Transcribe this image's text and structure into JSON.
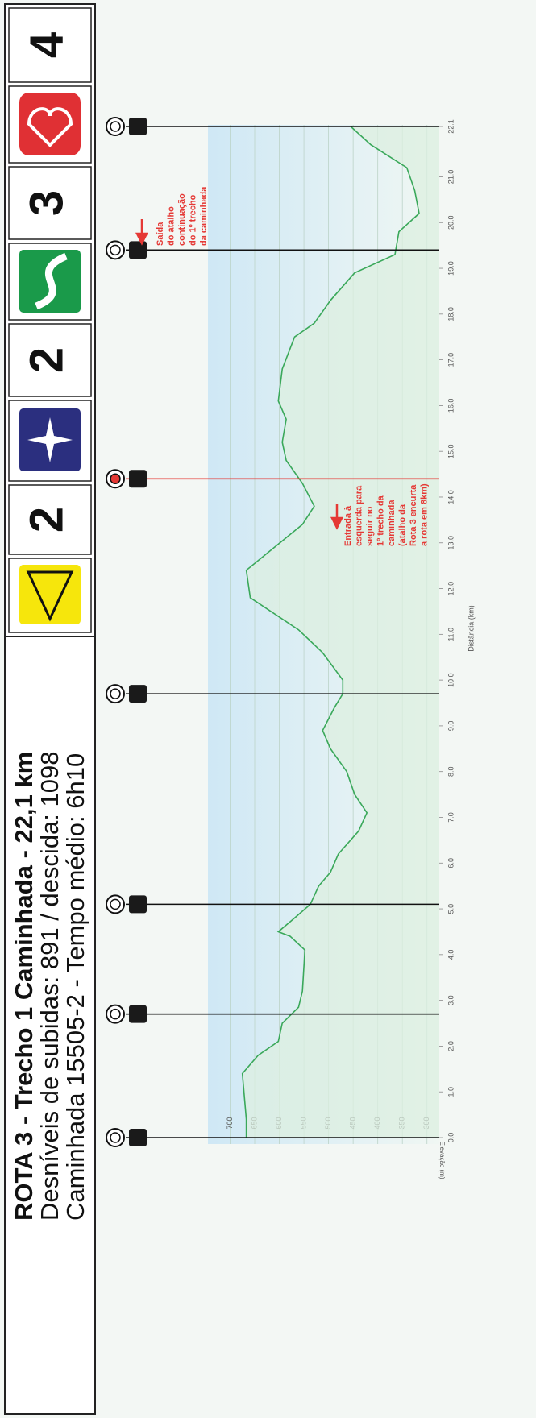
{
  "header": {
    "title_lines": [
      "ROTA 3 - Trecho 1 Caminhada - 22,1 km",
      "Desníveis de subidas: 891 / descida: 1098",
      "Caminhada 15505-2 - Tempo médio: 6h10"
    ],
    "badges": [
      "2",
      "2",
      "3",
      "4"
    ]
  },
  "chart_data": {
    "type": "line",
    "x_label": "Distância (km)",
    "y_label": "Elevação (m)",
    "color": "#3aa85a",
    "x": [
      0,
      0.4,
      1.4,
      1.8,
      2.1,
      2.5,
      2.85,
      3.2,
      4.1,
      4.4,
      4.5,
      4.8,
      5.1,
      5.5,
      5.8,
      6.2,
      6.7,
      7.1,
      7.5,
      8.0,
      8.5,
      8.9,
      9.4,
      9.7,
      10.0,
      10.6,
      11.1,
      11.8,
      12.4,
      12.9,
      13.4,
      13.8,
      14.3,
      14.8,
      15.2,
      15.7,
      16.1,
      16.8,
      17.5,
      17.8,
      18.3,
      18.9,
      19.3,
      19.8,
      20.2,
      20.7,
      21.2,
      21.7,
      22.1
    ],
    "values": [
      667,
      667,
      675,
      643,
      602,
      594,
      561,
      553,
      548,
      578,
      602,
      569,
      537,
      520,
      496,
      480,
      439,
      422,
      447,
      463,
      496,
      512,
      488,
      471,
      471,
      512,
      561,
      659,
      667,
      610,
      553,
      529,
      553,
      586,
      594,
      586,
      602,
      594,
      569,
      529,
      496,
      447,
      365,
      357,
      316,
      325,
      341,
      414,
      455
    ],
    "xlim": [
      0,
      22.1
    ],
    "ylim": [
      275,
      745
    ],
    "xticks": [
      {
        "value": 0,
        "label": "0.0"
      },
      {
        "value": 1,
        "label": "1.0"
      },
      {
        "value": 2,
        "label": "2.0"
      },
      {
        "value": 3,
        "label": "3.0"
      },
      {
        "value": 4,
        "label": "4.0"
      },
      {
        "value": 5,
        "label": "5.0"
      },
      {
        "value": 6,
        "label": "6.0"
      },
      {
        "value": 7,
        "label": "7.0"
      },
      {
        "value": 8,
        "label": "8.0"
      },
      {
        "value": 9,
        "label": "9.0"
      },
      {
        "value": 10,
        "label": "10.0"
      },
      {
        "value": 11,
        "label": "11.0"
      },
      {
        "value": 12,
        "label": "12.0"
      },
      {
        "value": 13,
        "label": "13.0"
      },
      {
        "value": 14,
        "label": "14.0"
      },
      {
        "value": 15,
        "label": "15.0"
      },
      {
        "value": 16,
        "label": "16.0"
      },
      {
        "value": 17,
        "label": "17.0"
      },
      {
        "value": 18,
        "label": "18.0"
      },
      {
        "value": 19,
        "label": "19.0"
      },
      {
        "value": 20,
        "label": "20.0"
      },
      {
        "value": 21,
        "label": "21.0"
      },
      22.1
    ],
    "yticks": [
      300,
      350,
      400,
      450,
      500,
      550,
      600,
      650,
      700
    ],
    "grid": true,
    "markers": [
      {
        "x": 0,
        "color": "#111111"
      },
      {
        "x": 2.7,
        "color": "#111111"
      },
      {
        "x": 5.1,
        "color": "#111111"
      },
      {
        "x": 9.7,
        "color": "#111111"
      },
      {
        "x": 14.4,
        "color": "#e53935"
      },
      {
        "x": 19.4,
        "color": "#111111"
      },
      {
        "x": 22.1,
        "color": "#111111"
      }
    ],
    "annotations": [
      {
        "lines": [
          "Saída",
          "do atalho",
          "continuação",
          "do 1º trecho",
          "da caminhada"
        ],
        "color": "#e53935"
      },
      {
        "lines": [
          "Entrada à",
          "esquerda para",
          "seguir no",
          "1º trecho da",
          "caminhada",
          "(atalho da",
          "Rota 3 encurta",
          "a rota em 8km)"
        ],
        "color": "#e53935"
      }
    ]
  }
}
